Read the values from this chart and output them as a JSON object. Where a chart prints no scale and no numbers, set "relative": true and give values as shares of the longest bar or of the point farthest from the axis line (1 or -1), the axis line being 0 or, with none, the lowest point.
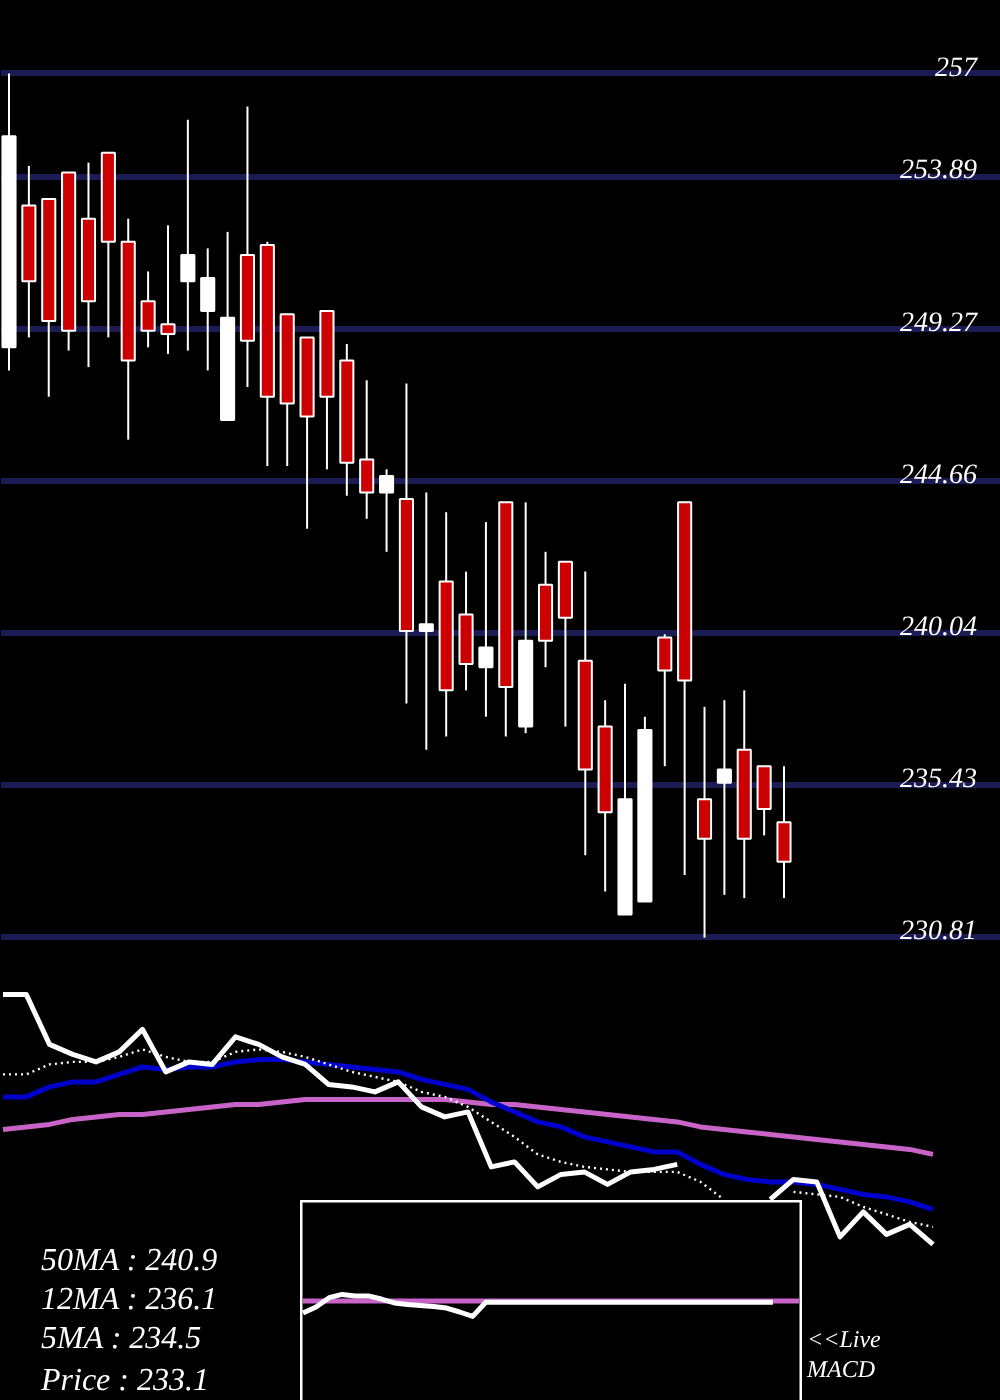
{
  "chart_data": [
    {
      "type": "candlestick",
      "categories": [
        null,
        null,
        null,
        null,
        null,
        null,
        null,
        null,
        null,
        null,
        null,
        null,
        null,
        null,
        null,
        null,
        null,
        null,
        null,
        null,
        null,
        null,
        null,
        null,
        null,
        null,
        null,
        null,
        null,
        null,
        null,
        null,
        null,
        null,
        null,
        null,
        null,
        null,
        null,
        null
      ],
      "ohlc": [
        [
          248.7,
          257.0,
          248.0,
          255.1
        ],
        [
          253.0,
          254.2,
          249.0,
          250.7
        ],
        [
          253.2,
          253.2,
          247.2,
          249.5
        ],
        [
          254.0,
          254.0,
          248.6,
          249.2
        ],
        [
          252.6,
          254.3,
          248.1,
          250.1
        ],
        [
          254.6,
          254.6,
          249.0,
          251.9
        ],
        [
          251.9,
          252.6,
          245.9,
          248.3
        ],
        [
          250.1,
          251.0,
          248.7,
          249.2
        ],
        [
          249.4,
          252.4,
          248.5,
          249.1
        ],
        [
          250.7,
          255.6,
          248.6,
          251.5
        ],
        [
          249.8,
          251.7,
          248.0,
          250.8
        ],
        [
          246.5,
          252.2,
          246.5,
          249.6
        ],
        [
          251.5,
          256.0,
          247.5,
          248.9
        ],
        [
          251.8,
          251.9,
          245.1,
          247.2
        ],
        [
          249.7,
          249.7,
          245.1,
          247.0
        ],
        [
          249.0,
          249.0,
          243.2,
          246.6
        ],
        [
          249.8,
          249.8,
          245.0,
          247.2
        ],
        [
          248.3,
          248.8,
          244.2,
          245.2
        ],
        [
          245.3,
          247.7,
          243.5,
          244.3
        ],
        [
          244.3,
          245.0,
          242.5,
          244.8
        ],
        [
          244.1,
          247.6,
          237.9,
          240.1
        ],
        [
          240.1,
          244.3,
          236.5,
          240.3
        ],
        [
          241.6,
          243.7,
          236.9,
          238.3
        ],
        [
          240.6,
          241.9,
          238.3,
          239.1
        ],
        [
          239.0,
          243.4,
          237.5,
          239.6
        ],
        [
          244.0,
          244.0,
          236.9,
          238.4
        ],
        [
          237.2,
          244.0,
          237.0,
          239.8
        ],
        [
          241.5,
          242.5,
          239.0,
          239.8
        ],
        [
          242.2,
          242.2,
          237.2,
          240.5
        ],
        [
          239.2,
          241.9,
          233.3,
          235.9
        ],
        [
          237.2,
          238.0,
          232.2,
          234.6
        ],
        [
          231.5,
          238.5,
          231.5,
          235.0
        ],
        [
          231.9,
          237.5,
          231.9,
          237.1
        ],
        [
          239.9,
          240.0,
          236.0,
          238.9
        ],
        [
          244.0,
          244.0,
          232.7,
          238.6
        ],
        [
          235.0,
          237.8,
          230.8,
          233.8
        ],
        [
          235.5,
          238.0,
          232.1,
          235.9
        ],
        [
          236.5,
          238.3,
          232.0,
          233.8
        ],
        [
          236.0,
          236.0,
          233.9,
          234.7
        ],
        [
          234.3,
          236.0,
          232.0,
          233.1
        ]
      ],
      "colors": [
        "#ffffff",
        "#cc0000",
        "#cc0000",
        "#cc0000",
        "#cc0000",
        "#cc0000",
        "#cc0000",
        "#cc0000",
        "#cc0000",
        "#ffffff",
        "#ffffff",
        "#ffffff",
        "#cc0000",
        "#cc0000",
        "#cc0000",
        "#cc0000",
        "#cc0000",
        "#cc0000",
        "#cc0000",
        "#ffffff",
        "#cc0000",
        "#ffffff",
        "#cc0000",
        "#cc0000",
        "#ffffff",
        "#cc0000",
        "#ffffff",
        "#cc0000",
        "#cc0000",
        "#cc0000",
        "#cc0000",
        "#ffffff",
        "#ffffff",
        "#cc0000",
        "#cc0000",
        "#cc0000",
        "#ffffff",
        "#cc0000",
        "#cc0000",
        "#cc0000"
      ],
      "ylim": [
        230.7,
        259.2
      ],
      "yticks": [
        230.81,
        235.43,
        240.04,
        244.66,
        249.27,
        253.89,
        257
      ],
      "grid": "y",
      "tick_labels": "y"
    },
    {
      "type": "line",
      "relative": true,
      "tick_labels": false,
      "categories": [
        null,
        null,
        null,
        null,
        null,
        null,
        null,
        null,
        null,
        null,
        null,
        null,
        null,
        null,
        null,
        null,
        null,
        null,
        null,
        null,
        null,
        null,
        null,
        null,
        null,
        null,
        null,
        null,
        null,
        null,
        null,
        null,
        null,
        null,
        null,
        null,
        null,
        null,
        null,
        null,
        null
      ],
      "series": [
        {
          "color": "#c864c8",
          "values": [
            0.46,
            0.47,
            0.48,
            0.5,
            0.51,
            0.52,
            0.52,
            0.53,
            0.54,
            0.55,
            0.56,
            0.56,
            0.57,
            0.58,
            0.58,
            0.58,
            0.58,
            0.58,
            0.58,
            0.58,
            0.57,
            0.56,
            0.56,
            0.55,
            0.54,
            0.53,
            0.52,
            0.51,
            0.5,
            0.49,
            0.47,
            0.46,
            0.45,
            0.44,
            0.43,
            0.42,
            0.41,
            0.4,
            0.39,
            0.38,
            0.36
          ]
        },
        {
          "color": "#0000cc",
          "values": [
            0.59,
            0.59,
            0.63,
            0.65,
            0.65,
            0.68,
            0.71,
            0.7,
            0.71,
            0.71,
            0.73,
            0.74,
            0.74,
            0.73,
            0.72,
            0.71,
            0.7,
            0.69,
            0.66,
            0.64,
            0.62,
            0.57,
            0.53,
            0.49,
            0.47,
            0.43,
            0.41,
            0.39,
            0.37,
            0.37,
            0.32,
            0.28,
            0.26,
            0.25,
            0.25,
            0.24,
            0.22,
            0.2,
            0.19,
            0.17,
            0.14
          ]
        },
        {
          "color": "#ffffff",
          "line_style": "dotted",
          "values": [
            0.68,
            0.68,
            0.72,
            0.73,
            0.73,
            0.75,
            0.78,
            0.75,
            0.73,
            0.73,
            0.77,
            0.78,
            0.77,
            0.75,
            0.72,
            0.69,
            0.67,
            0.65,
            0.61,
            0.59,
            0.55,
            0.49,
            0.43,
            0.36,
            0.33,
            0.31,
            0.3,
            0.29,
            0.29,
            0.29,
            0.25,
            0.18,
            null,
            null,
            0.21,
            0.2,
            0.19,
            0.15,
            0.12,
            0.09,
            0.07
          ]
        },
        {
          "color": "#ffffff",
          "values": [
            1.0,
            1.0,
            0.8,
            0.76,
            0.73,
            0.77,
            0.86,
            0.69,
            0.73,
            0.72,
            0.83,
            0.8,
            0.75,
            0.72,
            0.64,
            0.63,
            0.61,
            0.65,
            0.55,
            0.51,
            0.53,
            0.31,
            0.33,
            0.23,
            0.28,
            0.29,
            0.24,
            0.29,
            0.3,
            0.32,
            null,
            null,
            null,
            0.18,
            0.26,
            0.25,
            0.03,
            0.13,
            0.04,
            0.08,
            0
          ]
        }
      ]
    },
    {
      "type": "line",
      "relative": true,
      "tick_labels": false,
      "categories": [
        null,
        null,
        null,
        null,
        null,
        null,
        null,
        null,
        null,
        null,
        null,
        null,
        null,
        null,
        null,
        null,
        null,
        null,
        null,
        null,
        null,
        null,
        null,
        null,
        null,
        null,
        null,
        null,
        null,
        null,
        null,
        null,
        null,
        null,
        null,
        null,
        null,
        null,
        null
      ],
      "series": [
        {
          "color": "#c864c8",
          "values": [
            0.7,
            0.7,
            0.7,
            0.7,
            0.7,
            0.7,
            0.7,
            0.7,
            0.7,
            0.7,
            0.7,
            0.7,
            0.7,
            0.7,
            0.7,
            0.7,
            0.7,
            0.7,
            0.7,
            0.7,
            0.7,
            0.7,
            0.7,
            0.7,
            0.7,
            0.7,
            0.7,
            0.7,
            0.7,
            0.7,
            0.7,
            0.7,
            0.7,
            0.7,
            0.7,
            0.7,
            0.7,
            0.7,
            0.7
          ]
        },
        {
          "color": "#ffffff",
          "values": [
            0.15,
            0.43,
            0.85,
            1.0,
            0.93,
            0.93,
            0.79,
            0.61,
            0.54,
            0.5,
            0.45,
            0.38,
            0.2,
            0,
            0.64,
            0.64,
            0.64,
            0.64,
            0.64,
            0.64,
            0.64,
            0.64,
            0.64,
            0.64,
            0.64,
            0.64,
            0.64,
            0.64,
            0.64,
            0.64,
            0.64,
            0.64,
            0.64,
            0.64,
            0.64,
            0.64,
            0.64,
            null,
            null
          ]
        }
      ]
    },
    {
      "type": "other",
      "annotations": [
        "50MA : 240.9",
        "12MA : 236.1",
        "5MA : 234.5",
        "Price   : 233.1"
      ]
    },
    {
      "type": "other",
      "annotations": [
        "<<Live",
        "MACD"
      ]
    }
  ]
}
